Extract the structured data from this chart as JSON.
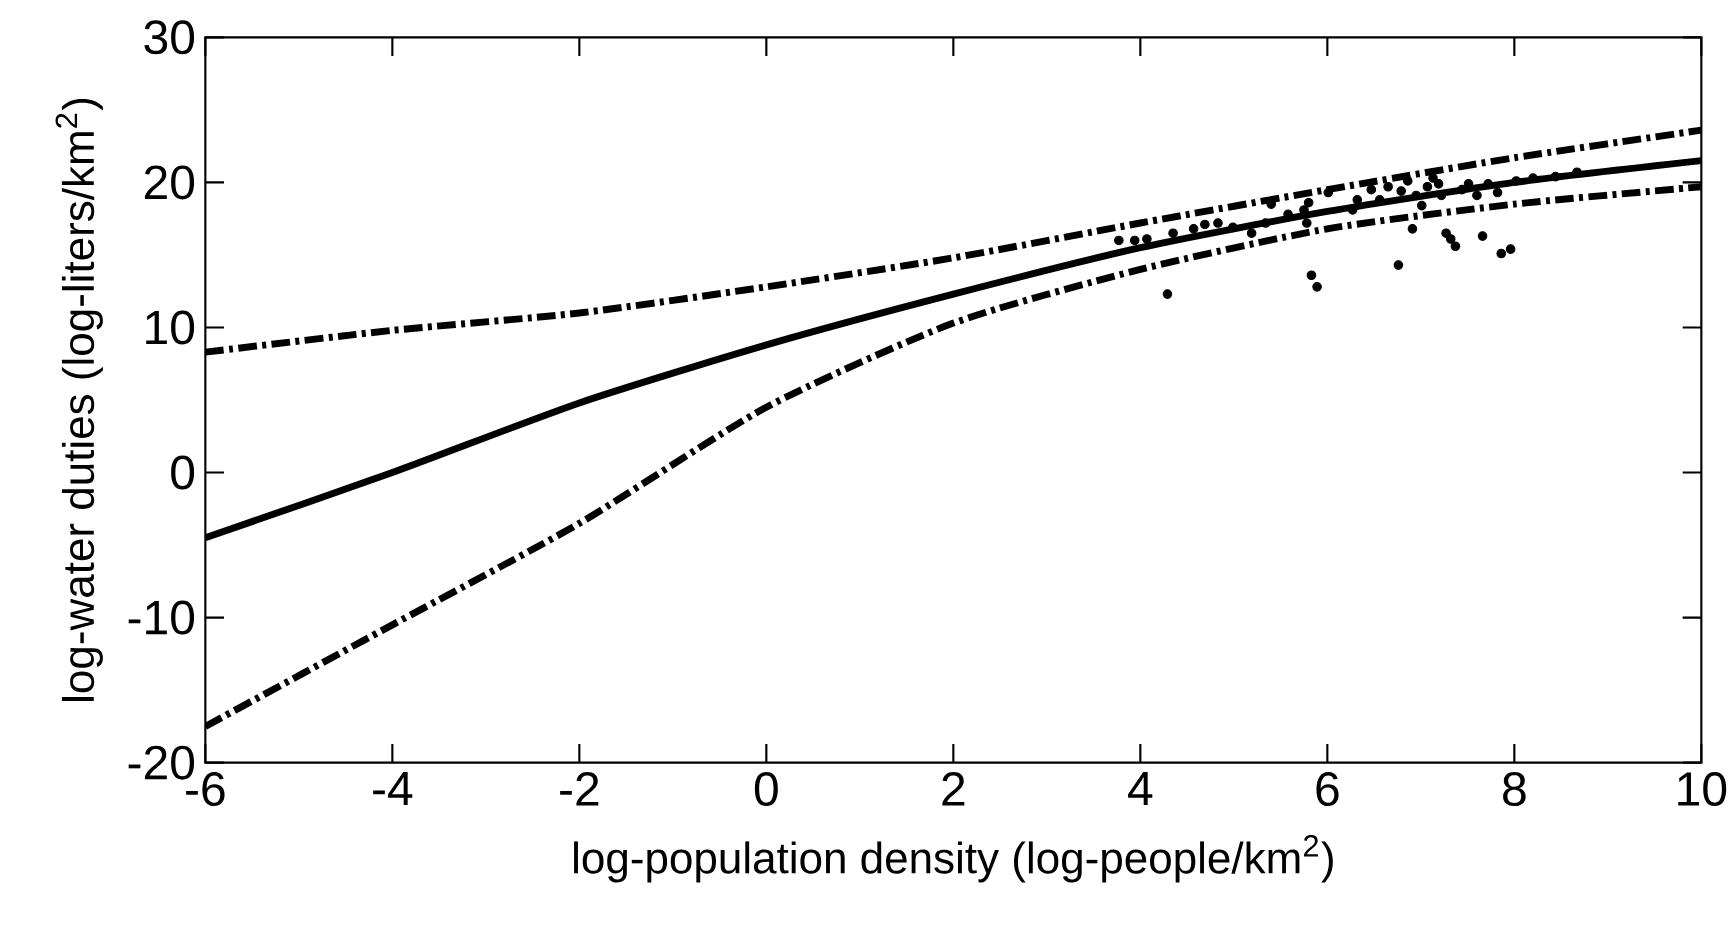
{
  "chart_data": {
    "type": "line",
    "xlabel": "log-population density (log-people/km$^{2}$)",
    "ylabel": "log-water duties (log-liters/km$^{2}$)",
    "xlim": [
      -6,
      10
    ],
    "ylim": [
      -20,
      30
    ],
    "xticks": [
      -6,
      -4,
      -2,
      0,
      2,
      4,
      6,
      8,
      10
    ],
    "yticks": [
      -20,
      -10,
      0,
      10,
      20,
      30
    ],
    "grid": false,
    "series": [
      {
        "line_style": "dashdot",
        "color": "#000000",
        "x": [
          -6,
          -4,
          -2,
          0,
          2,
          4,
          6,
          8,
          10
        ],
        "values": [
          8.3,
          9.8,
          11.0,
          12.8,
          14.8,
          17.2,
          19.5,
          21.7,
          23.6
        ]
      },
      {
        "line_style": "solid",
        "color": "#000000",
        "x": [
          -6,
          -4,
          -2,
          0,
          2,
          4,
          6,
          8,
          10
        ],
        "values": [
          -4.5,
          0,
          4.8,
          8.8,
          12.3,
          15.5,
          18,
          20,
          21.5
        ]
      },
      {
        "line_style": "dashdot",
        "color": "#000000",
        "x": [
          -6,
          -4,
          -2,
          0,
          2,
          4,
          6,
          8,
          10
        ],
        "values": [
          -17.5,
          -10.5,
          -3.5,
          4.5,
          10.3,
          14,
          16.8,
          18.5,
          19.7
        ]
      },
      {
        "type": "scatter",
        "marker": "circle",
        "color": "#000000",
        "x": [
          3.77,
          3.94,
          4.07,
          4.29,
          4.35,
          4.57,
          4.69,
          4.83,
          4.99,
          5.19,
          5.34,
          5.4,
          5.58,
          5.75,
          5.78,
          5.8,
          5.83,
          5.89,
          6.01,
          6.27,
          6.32,
          6.47,
          6.56,
          6.65,
          6.76,
          6.79,
          6.86,
          6.91,
          6.95,
          7.01,
          7.07,
          7.13,
          7.19,
          7.22,
          7.27,
          7.32,
          7.37,
          7.44,
          7.51,
          7.6,
          7.66,
          7.72,
          7.82,
          7.86,
          7.96,
          8.02,
          8.2,
          8.44,
          8.67
        ],
        "values": [
          16.0,
          16.0,
          16.1,
          12.3,
          16.5,
          16.8,
          17.1,
          17.2,
          16.9,
          16.5,
          17.2,
          18.5,
          17.8,
          18.1,
          17.2,
          18.6,
          13.6,
          12.8,
          19.3,
          18.1,
          18.8,
          19.5,
          18.8,
          19.7,
          14.3,
          19.4,
          20.1,
          16.8,
          19.1,
          18.4,
          19.7,
          20.3,
          19.9,
          19.1,
          16.5,
          16.1,
          15.6,
          19.5,
          19.9,
          19.1,
          16.3,
          19.9,
          19.3,
          15.1,
          15.4,
          20.1,
          20.3,
          20.4,
          20.7
        ]
      }
    ]
  }
}
